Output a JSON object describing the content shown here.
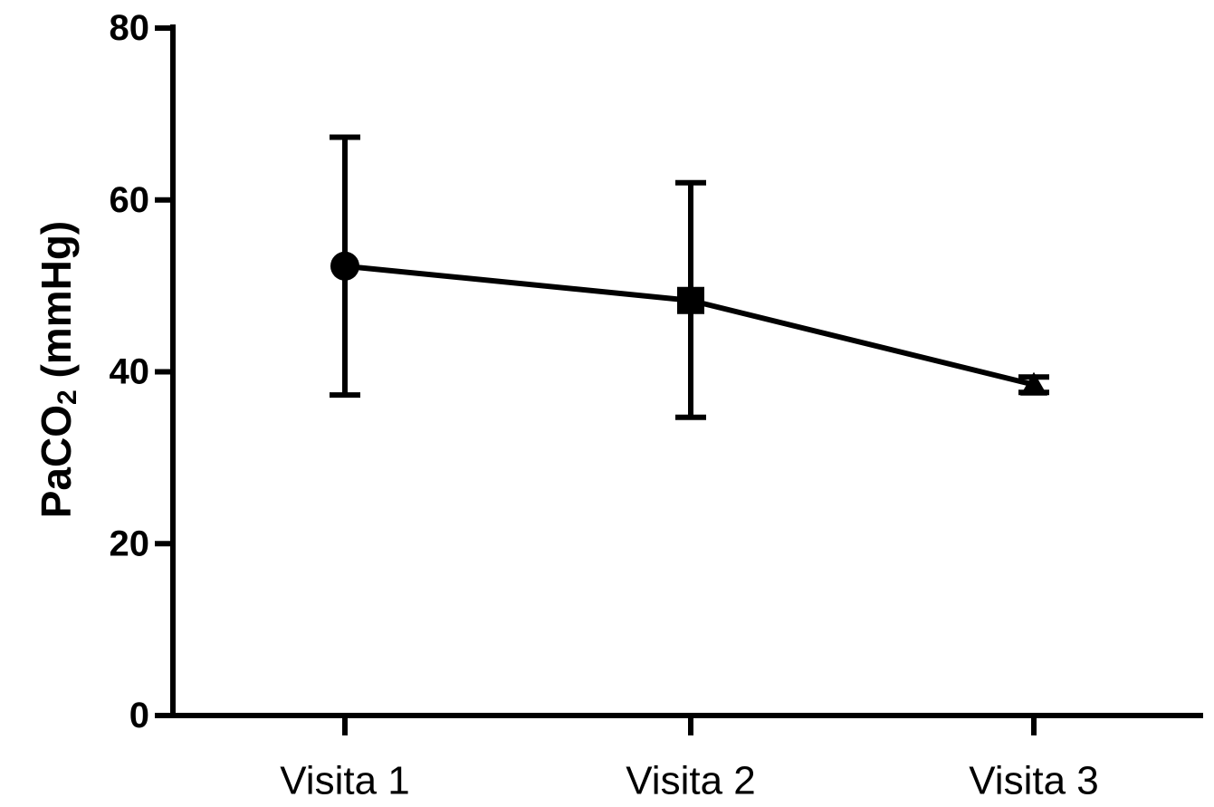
{
  "chart_data": {
    "type": "line",
    "title": "",
    "xlabel": "",
    "ylabel": "PaCO",
    "ylabel_subscript": "2",
    "ylabel_unit": " (mmHg)",
    "categories": [
      "Visita 1",
      "Visita 2",
      "Visita 3"
    ],
    "series": [
      {
        "values": [
          52.3,
          48.3,
          38.5
        ],
        "error_high": [
          67.3,
          62.0,
          39.4
        ],
        "error_low": [
          37.3,
          34.7,
          37.6
        ],
        "markers": [
          "circle",
          "square",
          "triangle"
        ],
        "color": "#000000"
      }
    ],
    "ylim": [
      0,
      80
    ],
    "yticks": [
      0,
      20,
      40,
      60,
      80
    ],
    "grid": false,
    "legend": "none"
  }
}
